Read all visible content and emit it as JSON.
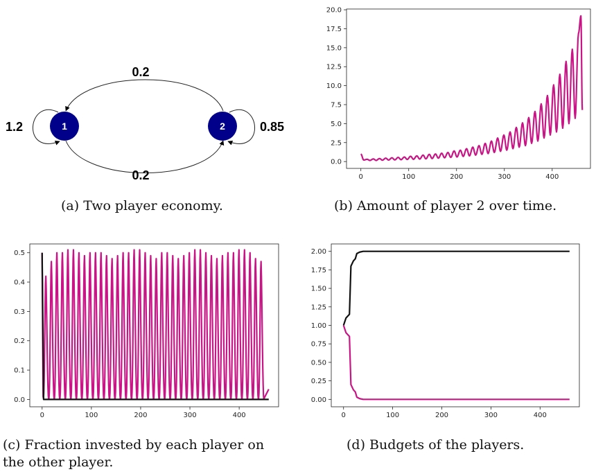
{
  "captions": {
    "a": "(a)  Two player economy.",
    "b": "(b)  Amount of player 2 over time.",
    "c1": "(c)  Fraction invested by each player on",
    "c2": "the other player.",
    "d": "(d)  Budgets of the players."
  },
  "diagram": {
    "nodes": [
      {
        "id": "1",
        "label": "1",
        "color": "#00008b"
      },
      {
        "id": "2",
        "label": "2",
        "color": "#00008b"
      }
    ],
    "edges": [
      {
        "from": "1",
        "to": "1",
        "label": "1.2"
      },
      {
        "from": "2",
        "to": "2",
        "label": "0.85"
      },
      {
        "from": "2",
        "to": "1",
        "label": "0.2"
      },
      {
        "from": "1",
        "to": "2",
        "label": "0.2"
      }
    ]
  },
  "chart_data": [
    {
      "id": "b",
      "type": "line",
      "title": "",
      "xlabel": "",
      "ylabel": "",
      "xlim": [
        -30,
        480
      ],
      "ylim": [
        -0.9,
        20.1
      ],
      "xticks": [
        0,
        100,
        200,
        300,
        400
      ],
      "yticks": [
        0.0,
        2.5,
        5.0,
        7.5,
        10.0,
        12.5,
        15.0,
        17.5,
        20.0
      ],
      "ytick_labels": [
        "0.0",
        "2.5",
        "5.0",
        "7.5",
        "10.0",
        "12.5",
        "15.0",
        "17.5",
        "20.0"
      ],
      "series": [
        {
          "color": "#c71585",
          "description_of_shape": "oscillation with period ~13 and growing amplitude",
          "peaks": [
            [
              0,
              1.0
            ],
            [
              13,
              0.3
            ],
            [
              26,
              0.35
            ],
            [
              39,
              0.4
            ],
            [
              52,
              0.45
            ],
            [
              65,
              0.5
            ],
            [
              78,
              0.55
            ],
            [
              91,
              0.6
            ],
            [
              104,
              0.7
            ],
            [
              117,
              0.75
            ],
            [
              130,
              0.85
            ],
            [
              143,
              0.95
            ],
            [
              156,
              1.0
            ],
            [
              169,
              1.1
            ],
            [
              182,
              1.2
            ],
            [
              195,
              1.4
            ],
            [
              208,
              1.5
            ],
            [
              221,
              1.7
            ],
            [
              234,
              1.9
            ],
            [
              247,
              2.1
            ],
            [
              260,
              2.4
            ],
            [
              273,
              2.7
            ],
            [
              286,
              3.1
            ],
            [
              299,
              3.5
            ],
            [
              312,
              3.9
            ],
            [
              325,
              4.5
            ],
            [
              338,
              5.1
            ],
            [
              351,
              5.8
            ],
            [
              364,
              6.6
            ],
            [
              377,
              7.6
            ],
            [
              390,
              8.7
            ],
            [
              403,
              10.1
            ],
            [
              416,
              11.5
            ],
            [
              429,
              13.2
            ],
            [
              442,
              14.8
            ],
            [
              455,
              16.9
            ],
            [
              460,
              19.2
            ]
          ],
          "troughs": [
            [
              6,
              0.2
            ],
            [
              19,
              0.15
            ],
            [
              32,
              0.15
            ],
            [
              45,
              0.18
            ],
            [
              58,
              0.2
            ],
            [
              71,
              0.22
            ],
            [
              84,
              0.25
            ],
            [
              97,
              0.28
            ],
            [
              110,
              0.3
            ],
            [
              123,
              0.33
            ],
            [
              136,
              0.36
            ],
            [
              149,
              0.4
            ],
            [
              162,
              0.45
            ],
            [
              175,
              0.5
            ],
            [
              188,
              0.55
            ],
            [
              201,
              0.6
            ],
            [
              214,
              0.68
            ],
            [
              227,
              0.75
            ],
            [
              240,
              0.85
            ],
            [
              253,
              0.95
            ],
            [
              266,
              1.05
            ],
            [
              279,
              1.2
            ],
            [
              292,
              1.35
            ],
            [
              305,
              1.5
            ],
            [
              318,
              1.7
            ],
            [
              331,
              1.9
            ],
            [
              344,
              2.1
            ],
            [
              357,
              2.4
            ],
            [
              370,
              2.7
            ],
            [
              383,
              3.1
            ],
            [
              396,
              3.5
            ],
            [
              409,
              3.9
            ],
            [
              422,
              4.4
            ],
            [
              435,
              5.0
            ],
            [
              448,
              5.7
            ],
            [
              463,
              6.8
            ]
          ]
        }
      ]
    },
    {
      "id": "c",
      "type": "line",
      "title": "",
      "xlabel": "",
      "ylabel": "",
      "xlim": [
        -25,
        480
      ],
      "ylim": [
        -0.025,
        0.53
      ],
      "xticks": [
        0,
        100,
        200,
        300,
        400
      ],
      "yticks": [
        0.0,
        0.1,
        0.2,
        0.3,
        0.4,
        0.5
      ],
      "series": [
        {
          "color": "#c71585",
          "period": 11.2,
          "start": 0.5,
          "peak_values": [
            0.42,
            0.47,
            0.5,
            0.5,
            0.51,
            0.51,
            0.5,
            0.49,
            0.5,
            0.5,
            0.5,
            0.49,
            0.48,
            0.49,
            0.5,
            0.5,
            0.51,
            0.51,
            0.5,
            0.49,
            0.48,
            0.5,
            0.5,
            0.49,
            0.48,
            0.49,
            0.5,
            0.51,
            0.51,
            0.5,
            0.49,
            0.48,
            0.49,
            0.5,
            0.5,
            0.51,
            0.51,
            0.5,
            0.48,
            0.47
          ]
        },
        {
          "color": "#111111",
          "points": [
            [
              0,
              0.5
            ],
            [
              3,
              0.0
            ],
            [
              460,
              0.0
            ]
          ]
        }
      ]
    },
    {
      "id": "d",
      "type": "line",
      "title": "",
      "xlabel": "",
      "ylabel": "",
      "xlim": [
        -25,
        480
      ],
      "ylim": [
        -0.1,
        2.1
      ],
      "xticks": [
        0,
        100,
        200,
        300,
        400
      ],
      "yticks": [
        0.0,
        0.25,
        0.5,
        0.75,
        1.0,
        1.25,
        1.5,
        1.75,
        2.0
      ],
      "ytick_labels": [
        "0.00",
        "0.25",
        "0.50",
        "0.75",
        "1.00",
        "1.25",
        "1.50",
        "1.75",
        "2.00"
      ],
      "series": [
        {
          "color": "#111111",
          "points": [
            [
              0,
              1.0
            ],
            [
              5,
              1.1
            ],
            [
              12,
              1.15
            ],
            [
              15,
              1.8
            ],
            [
              20,
              1.87
            ],
            [
              24,
              1.9
            ],
            [
              27,
              1.97
            ],
            [
              33,
              1.99
            ],
            [
              40,
              2.0
            ],
            [
              460,
              2.0
            ]
          ]
        },
        {
          "color": "#c71585",
          "points": [
            [
              0,
              1.0
            ],
            [
              5,
              0.9
            ],
            [
              12,
              0.85
            ],
            [
              15,
              0.2
            ],
            [
              20,
              0.13
            ],
            [
              24,
              0.1
            ],
            [
              27,
              0.03
            ],
            [
              33,
              0.01
            ],
            [
              40,
              0.0
            ],
            [
              460,
              0.0
            ]
          ]
        }
      ]
    }
  ]
}
